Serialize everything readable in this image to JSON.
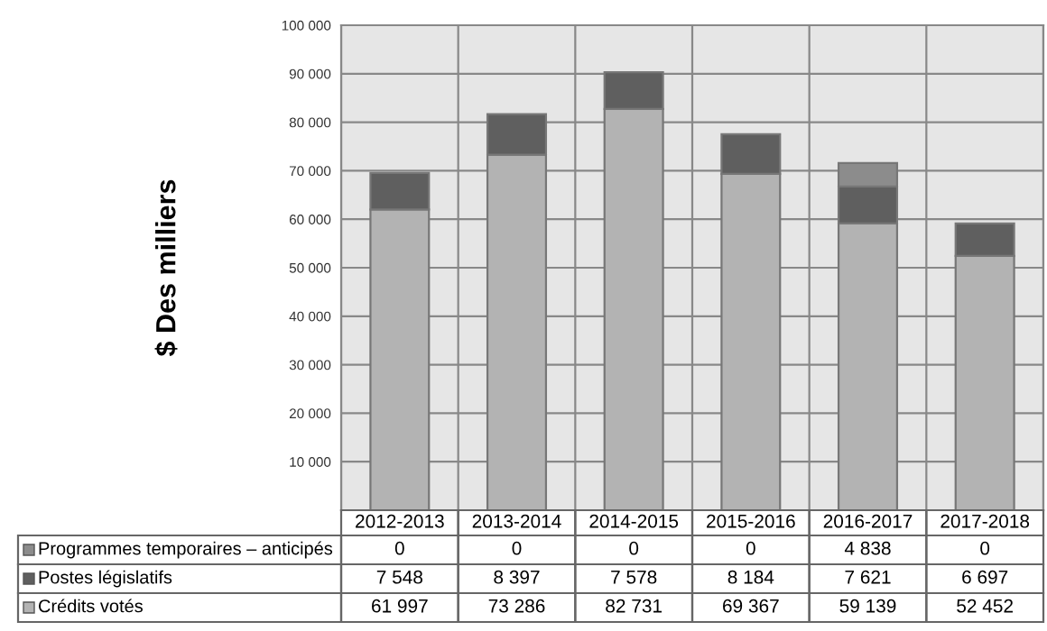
{
  "chart_data": {
    "type": "bar",
    "stacked": true,
    "ylabel": "$ Des milliers",
    "categories": [
      "2012-2013",
      "2013-2014",
      "2014-2015",
      "2015-2016",
      "2016-2017",
      "2017-2018"
    ],
    "series": [
      {
        "name": "Crédits votés",
        "color": "#b3b3b3",
        "values": [
          61997,
          73286,
          82731,
          69367,
          59139,
          52452
        ],
        "value_labels": [
          "61 997",
          "73 286",
          "82 731",
          "69 367",
          "59 139",
          "52 452"
        ]
      },
      {
        "name": "Postes législatifs",
        "color": "#5f5f5f",
        "values": [
          7548,
          8397,
          7578,
          8184,
          7621,
          6697
        ],
        "value_labels": [
          "7 548",
          "8 397",
          "7 578",
          "8 184",
          "7 621",
          "6 697"
        ]
      },
      {
        "name": "Programmes temporaires – anticipés",
        "color": "#8c8c8c",
        "values": [
          0,
          0,
          0,
          0,
          4838,
          0
        ],
        "value_labels": [
          "0",
          "0",
          "0",
          "0",
          "4 838",
          "0"
        ]
      }
    ],
    "ylim": [
      0,
      100000
    ],
    "yticks": [
      {
        "value": 0,
        "label": null
      },
      {
        "value": 10000,
        "label": "10 000"
      },
      {
        "value": 20000,
        "label": "20 000"
      },
      {
        "value": 30000,
        "label": "30 000"
      },
      {
        "value": 40000,
        "label": "40 000"
      },
      {
        "value": 50000,
        "label": "50 000"
      },
      {
        "value": 60000,
        "label": "60 000"
      },
      {
        "value": 70000,
        "label": "70 000"
      },
      {
        "value": 80000,
        "label": "80 000"
      },
      {
        "value": 90000,
        "label": "90 000"
      },
      {
        "value": 100000,
        "label": "100 000"
      }
    ],
    "grid": "y",
    "legend": "bottom",
    "tick_labels": "y"
  }
}
